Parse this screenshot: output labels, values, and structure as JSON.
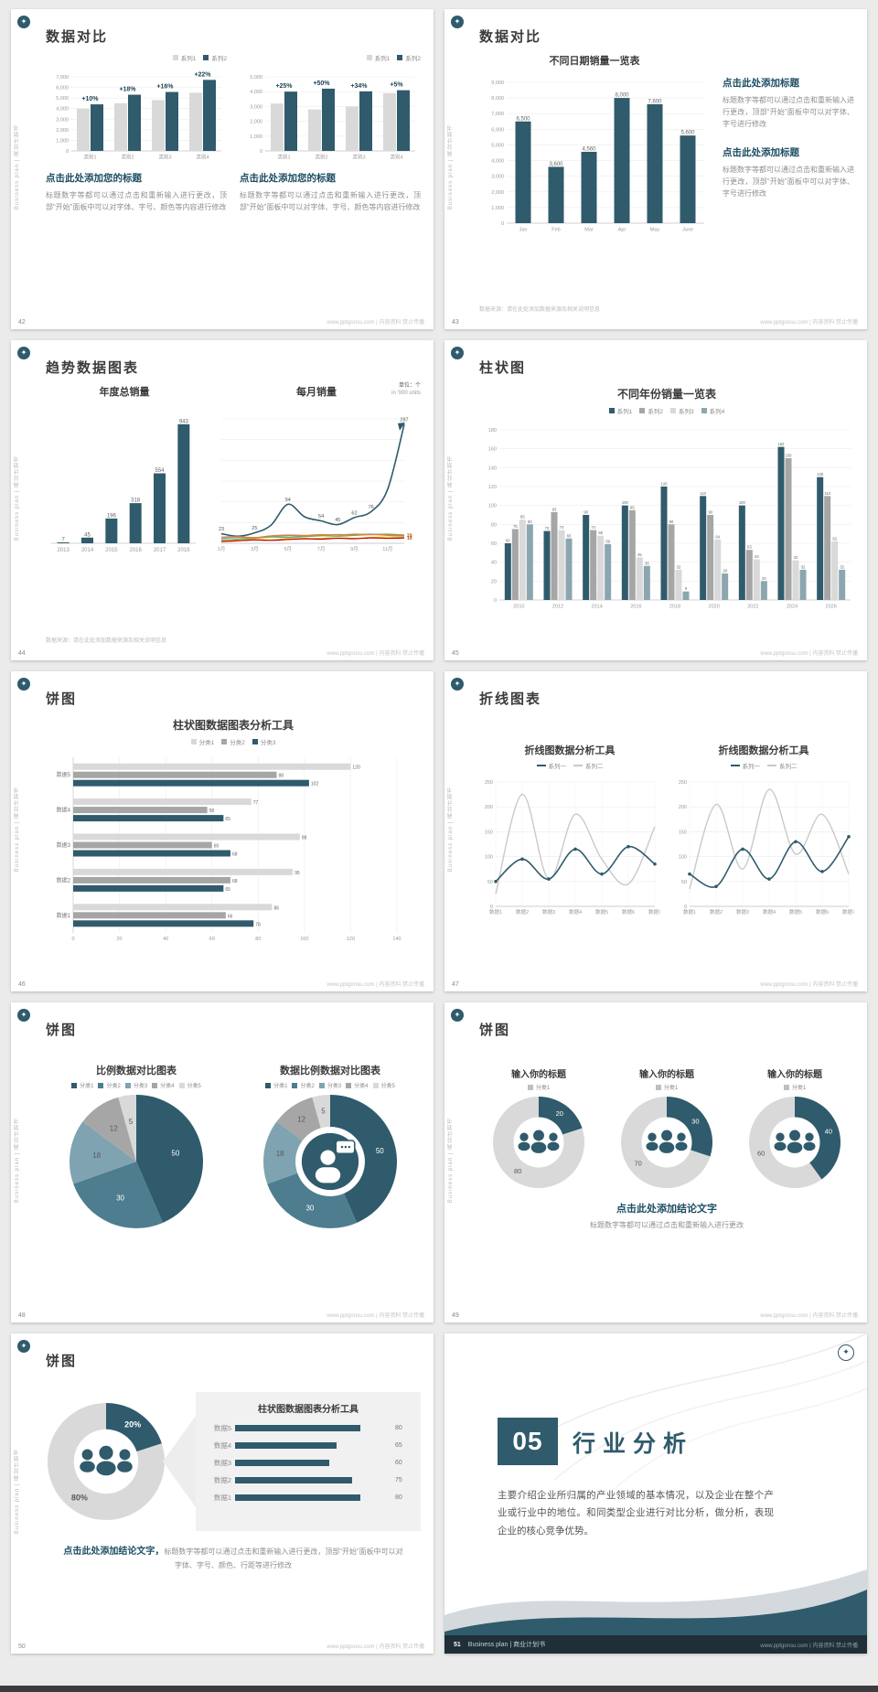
{
  "common": {
    "sidebar_text": "Business plan | 商业计划书",
    "footer_right": "www.pptgonsu.com | 内容资料 禁止传播",
    "logo_glyph": "✦",
    "colors": {
      "primary": "#2f5b6c",
      "primary_mid": "#4d7d8f",
      "primary_light": "#7fa3b0",
      "gray_light": "#d9d9d9",
      "gray_mid": "#a6a6a6",
      "accent_text": "#1d4e63"
    }
  },
  "slides": {
    "s42": {
      "page_no": "42",
      "title": "数据对比",
      "legend": [
        {
          "label": "系列1",
          "color": "#d9d9d9"
        },
        {
          "label": "系列2",
          "color": "#2f5b6c"
        }
      ],
      "left": {
        "chart_data": {
          "type": "bar",
          "ymax": 7000,
          "ytick_step": 1000,
          "categories": [
            "类别1",
            "类别2",
            "类别3",
            "类别4"
          ],
          "series": [
            {
              "name": "系列1",
              "color": "#d9d9d9",
              "values": [
                4000,
                4500,
                4800,
                5500
              ]
            },
            {
              "name": "系列2",
              "color": "#2f5b6c",
              "values": [
                4400,
                5310,
                5570,
                6710
              ]
            }
          ],
          "group_labels": [
            "+10%",
            "+18%",
            "+16%",
            "+22%"
          ]
        },
        "heading": "点击此处添加您的标题",
        "body": "标题数字等都可以通过点击和重新输入进行更改，顶部“开始”面板中可以对字体、字号、颜色等内容进行修改"
      },
      "right": {
        "chart_data": {
          "type": "bar",
          "ymax": 5000,
          "ytick_step": 1000,
          "categories": [
            "类别1",
            "类别2",
            "类别3",
            "类别4"
          ],
          "series": [
            {
              "name": "系列1",
              "color": "#d9d9d9",
              "values": [
                3200,
                2800,
                3000,
                3900
              ]
            },
            {
              "name": "系列2",
              "color": "#2f5b6c",
              "values": [
                4000,
                4200,
                4020,
                4095
              ]
            }
          ],
          "group_labels": [
            "+25%",
            "+50%",
            "+34%",
            "+5%"
          ]
        },
        "heading": "点击此处添加您的标题",
        "body": "标题数字等都可以通过点击和重新输入进行更改，顶部“开始”面板中可以对字体、字号、颜色等内容进行修改"
      }
    },
    "s43": {
      "page_no": "43",
      "title": "数据对比",
      "chart_title": "不同日期销量一览表",
      "chart_data": {
        "type": "bar",
        "ymax": 9000,
        "ytick_step": 1000,
        "categories": [
          "Jan",
          "Feb",
          "Mar",
          "Apr",
          "May",
          "June"
        ],
        "series": [
          {
            "name": "销量",
            "color": "#2f5b6c",
            "values": [
              6500,
              3600,
              4560,
              8000,
              7600,
              5600
            ]
          }
        ],
        "value_labels": true
      },
      "blocks": [
        {
          "heading": "点击此处添加标题",
          "body": "标题数字等都可以通过点击和重新输入进行更改，顶部“开始”面板中可以对字体、字号进行修改"
        },
        {
          "heading": "点击此处添加标题",
          "body": "标题数字等都可以通过点击和重新输入进行更改，顶部“开始”面板中可以对字体、字号进行修改"
        }
      ],
      "source_note": "数据来源：请在此处添加数据来源及相关说明信息"
    },
    "s44": {
      "page_no": "44",
      "title": "趋势数据图表",
      "left": {
        "chart_title": "年度总销量",
        "chart_data": {
          "type": "bar",
          "ymax": 1000,
          "show_y": false,
          "categories": [
            "2013",
            "2014",
            "2015",
            "2016",
            "2017",
            "2018"
          ],
          "series": [
            {
              "name": "年度总销量",
              "color": "#2f5b6c",
              "values": [
                7,
                45,
                196,
                318,
                554,
                943
              ]
            }
          ],
          "value_labels": true
        }
      },
      "right": {
        "chart_title": "每月销量",
        "unit_note": "单位：个",
        "unit_note2": "in '000 units",
        "chart_data": {
          "type": "line",
          "ymax": 300,
          "ytick_step": 50,
          "show_y": false,
          "x_labels": [
            "1月",
            "3月",
            "5月",
            "7月",
            "9月",
            "11月"
          ],
          "x_every": 2,
          "series": [
            {
              "name": "系列1",
              "color": "#2f5b6c",
              "width": 1.6,
              "arrow": true,
              "values": [
                23,
                17,
                25,
                44,
                94,
                64,
                54,
                45,
                62,
                76,
                130,
                287
              ],
              "point_labels": [
                "23",
                "",
                "25",
                "",
                "94",
                "",
                "54",
                "45",
                "62",
                "76",
                "",
                "287"
              ]
            },
            {
              "name": "系列2",
              "color": "#5b9bd5",
              "values": [
                12,
                14,
                13,
                16,
                18,
                17,
                19,
                21,
                20,
                22,
                19,
                18
              ],
              "end_label": "18"
            },
            {
              "name": "系列3",
              "color": "#70ad47",
              "values": [
                8,
                10,
                12,
                15,
                14,
                16,
                18,
                17,
                19,
                21,
                22,
                20
              ],
              "end_label": "20"
            },
            {
              "name": "系列4",
              "color": "#ffc000",
              "values": [
                5,
                7,
                9,
                8,
                11,
                10,
                12,
                13,
                12,
                14,
                15,
                15
              ],
              "end_label": "15"
            },
            {
              "name": "系列5",
              "color": "#ed7d31",
              "values": [
                15,
                16,
                14,
                18,
                20,
                19,
                21,
                20,
                22,
                21,
                20,
                20
              ],
              "end_label": "20"
            },
            {
              "name": "系列6",
              "color": "#c00000",
              "values": [
                4,
                6,
                8,
                7,
                9,
                11,
                10,
                12,
                11,
                13,
                12,
                13
              ],
              "end_label": "13"
            }
          ]
        }
      },
      "source_note": "数据来源：请在此处添加数据来源及相关说明信息"
    },
    "s45": {
      "page_no": "45",
      "title": "柱状图",
      "chart_title": "不同年份销量一览表",
      "legend": [
        {
          "label": "系列1",
          "color": "#2f5b6c"
        },
        {
          "label": "系列2",
          "color": "#a6a6a6"
        },
        {
          "label": "系列3",
          "color": "#d9d9d9"
        },
        {
          "label": "系列4",
          "color": "#8ca6b0"
        }
      ],
      "chart_data": {
        "type": "bar",
        "ymax": 180,
        "ytick_step": 20,
        "categories": [
          "2010",
          "2012",
          "2014",
          "2016",
          "2018",
          "2020",
          "2022",
          "2024",
          "2026"
        ],
        "series": [
          {
            "name": "系列1",
            "color": "#2f5b6c",
            "values": [
              60,
              73,
              90,
              100,
              120,
              110,
              100,
              162,
              130
            ]
          },
          {
            "name": "系列2",
            "color": "#a6a6a6",
            "values": [
              75,
              93,
              74,
              95,
              80,
              90,
              53,
              150,
              110
            ]
          },
          {
            "name": "系列3",
            "color": "#d9d9d9",
            "values": [
              85,
              74,
              68,
              45,
              32,
              64,
              43,
              42,
              62
            ]
          },
          {
            "name": "系列4",
            "color": "#8ca6b0",
            "values": [
              80,
              65,
              59,
              36,
              9,
              28,
              20,
              32,
              32
            ]
          }
        ],
        "value_labels": true
      }
    },
    "s46": {
      "page_no": "46",
      "title": "饼图",
      "chart_title": "柱状图数据图表分析工具",
      "legend": [
        {
          "label": "分类1",
          "color": "#d9d9d9"
        },
        {
          "label": "分类2",
          "color": "#a6a6a6"
        },
        {
          "label": "分类3",
          "color": "#2f5b6c"
        }
      ],
      "chart_data": {
        "type": "hbar",
        "xmax": 140,
        "xtick_step": 20,
        "categories": [
          "数据5",
          "数据4",
          "数据3",
          "数据2",
          "数据1"
        ],
        "series": [
          {
            "name": "分类1",
            "color": "#d9d9d9",
            "values": [
              120,
              77,
              98,
              95,
              86
            ]
          },
          {
            "name": "分类2",
            "color": "#a6a6a6",
            "values": [
              88,
              58,
              60,
              68,
              66
            ]
          },
          {
            "name": "分类3",
            "color": "#2f5b6c",
            "values": [
              102,
              65,
              68,
              65,
              78
            ]
          }
        ],
        "value_labels": true
      }
    },
    "s47": {
      "page_no": "47",
      "title": "折线图表",
      "charts": [
        {
          "chart_title": "折线图数据分析工具",
          "legend": [
            {
              "label": "系列一",
              "color": "#2f5b6c",
              "line": true
            },
            {
              "label": "系列二",
              "color": "#c9c9c9",
              "line": true
            }
          ],
          "chart_data": {
            "type": "line",
            "ymax": 250,
            "ytick_step": 50,
            "x_labels": [
              "数据1",
              "数据2",
              "数据3",
              "数据4",
              "数据5",
              "数据6",
              "数据7"
            ],
            "series": [
              {
                "name": "系列二",
                "color": "#c9c9c9",
                "width": 1.4,
                "values": [
                  25,
                  225,
                  55,
                  185,
                  95,
                  45,
                  160
                ]
              },
              {
                "name": "系列一",
                "color": "#2f5b6c",
                "width": 1.6,
                "markers": true,
                "values": [
                  50,
                  95,
                  55,
                  115,
                  65,
                  120,
                  85
                ]
              }
            ]
          }
        },
        {
          "chart_title": "折线图数据分析工具",
          "legend": [
            {
              "label": "系列一",
              "color": "#2f5b6c",
              "line": true
            },
            {
              "label": "系列二",
              "color": "#c9c9c9",
              "line": true
            }
          ],
          "chart_data": {
            "type": "line",
            "ymax": 250,
            "ytick_step": 50,
            "x_labels": [
              "数据1",
              "数据2",
              "数据3",
              "数据4",
              "数据5",
              "数据6",
              "数据7"
            ],
            "series": [
              {
                "name": "系列二",
                "color": "#c9c9c9",
                "width": 1.4,
                "values": [
                  35,
                  205,
                  75,
                  235,
                  105,
                  185,
                  65
                ]
              },
              {
                "name": "系列一",
                "color": "#2f5b6c",
                "width": 1.6,
                "markers": true,
                "values": [
                  65,
                  40,
                  115,
                  55,
                  130,
                  70,
                  140
                ]
              }
            ]
          }
        }
      ]
    },
    "s48": {
      "page_no": "48",
      "title": "饼图",
      "legend": [
        {
          "label": "分类1",
          "color": "#2f5b6c"
        },
        {
          "label": "分类2",
          "color": "#4d7d8f"
        },
        {
          "label": "分类3",
          "color": "#7fa3b0"
        },
        {
          "label": "分类4",
          "color": "#a6a6a6"
        },
        {
          "label": "分类5",
          "color": "#d9d9d9"
        }
      ],
      "left": {
        "chart_title": "比例数据对比图表",
        "chart_data": {
          "type": "pie",
          "names": [
            "分类1",
            "分类2",
            "分类3",
            "分类4",
            "分类5"
          ],
          "values": [
            50,
            30,
            18,
            12,
            5
          ],
          "labels": [
            "50",
            "30",
            "18",
            "12",
            "5"
          ],
          "colors": [
            "#2f5b6c",
            "#4d7d8f",
            "#7fa3b0",
            "#a6a6a6",
            "#d9d9d9"
          ]
        }
      },
      "right": {
        "chart_title": "数据比例数据对比图表",
        "chart_data": {
          "type": "donut",
          "names": [
            "分类1",
            "分类2",
            "分类3",
            "分类4",
            "分类5"
          ],
          "values": [
            50,
            30,
            18,
            12,
            5
          ],
          "labels": [
            "50",
            "30",
            "18",
            "12",
            "5"
          ],
          "colors": [
            "#2f5b6c",
            "#4d7d8f",
            "#7fa3b0",
            "#a6a6a6",
            "#d9d9d9"
          ],
          "center_icon": "person-chat-icon"
        }
      }
    },
    "s49": {
      "page_no": "49",
      "title": "饼图",
      "columns": [
        {
          "chart_title": "输入你的标题",
          "legend": [
            {
              "label": "分类1",
              "color": "#bfbfbf"
            }
          ],
          "chart_data": {
            "type": "donut",
            "values": [
              20,
              80
            ],
            "labels": [
              "20",
              "80"
            ],
            "colors": [
              "#2f5b6c",
              "#d9d9d9"
            ],
            "center_icon": "people-icon"
          }
        },
        {
          "chart_title": "输入你的标题",
          "legend": [
            {
              "label": "分类1",
              "color": "#bfbfbf"
            }
          ],
          "chart_data": {
            "type": "donut",
            "values": [
              30,
              70
            ],
            "labels": [
              "30",
              "70"
            ],
            "colors": [
              "#2f5b6c",
              "#d9d9d9"
            ],
            "center_icon": "people-icon"
          }
        },
        {
          "chart_title": "输入你的标题",
          "legend": [
            {
              "label": "分类1",
              "color": "#bfbfbf"
            }
          ],
          "chart_data": {
            "type": "donut",
            "values": [
              40,
              60
            ],
            "labels": [
              "40",
              "60"
            ],
            "colors": [
              "#2f5b6c",
              "#d9d9d9"
            ],
            "center_icon": "people-icon"
          }
        }
      ],
      "conclusion_heading": "点击此处添加结论文字",
      "conclusion_body": "标题数字等都可以通过点击和重新输入进行更改"
    },
    "s50": {
      "page_no": "50",
      "title": "饼图",
      "donut": {
        "chart_data": {
          "type": "donut",
          "values": [
            20,
            80
          ],
          "labels": [
            "20%",
            "80%"
          ],
          "colors": [
            "#2f5b6c",
            "#d9d9d9"
          ],
          "center_icon": "people-icon"
        }
      },
      "panel": {
        "title": "柱状图数据图表分析工具",
        "max": 100,
        "rows": [
          {
            "label": "数据5",
            "value": 80
          },
          {
            "label": "数据4",
            "value": 65
          },
          {
            "label": "数据3",
            "value": 60
          },
          {
            "label": "数据2",
            "value": 75
          },
          {
            "label": "数据1",
            "value": 80
          }
        ]
      },
      "conclusion_heading": "点击此处添加结论文字，",
      "conclusion_body": "标题数字等都可以通过点击和重新输入进行更改，顶部“开始”面板中可以对字体、字号、颜色、行距等进行修改"
    },
    "s51": {
      "page_no": "51",
      "number": "05",
      "title": "行业分析",
      "body": "主要介绍企业所归属的产业领域的基本情况，以及企业在整个产业或行业中的地位。和同类型企业进行对比分析，做分析，表现企业的核心竞争优势。",
      "footer_brand": "Business plan | 商业计划书"
    }
  }
}
